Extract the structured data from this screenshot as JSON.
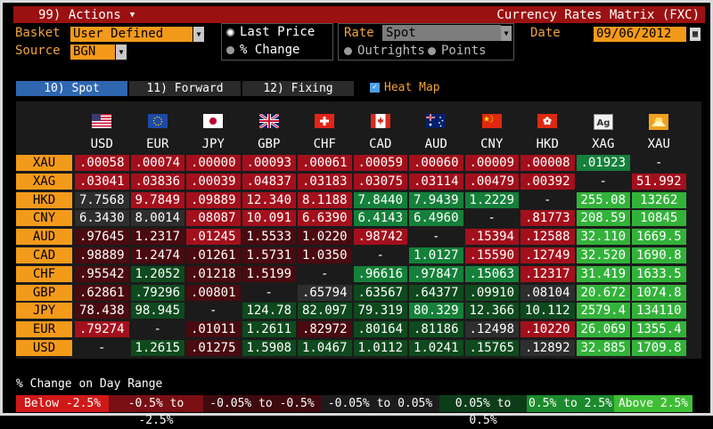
{
  "titlebar": {
    "actions_label": "99) Actions",
    "actions_arrow": "▼",
    "app_title": "Currency Rates Matrix (FXC)"
  },
  "controls": {
    "basket_label": "Basket",
    "basket_value": "User Defined",
    "source_label": "Source",
    "source_value": "BGN",
    "last_price_label": "Last Price",
    "pct_change_label": "% Change",
    "rate_label": "Rate",
    "rate_value": "Spot",
    "outrights_label": "Outrights",
    "points_label": "Points",
    "date_label": "Date",
    "date_value": "09/06/2012"
  },
  "tabs": [
    {
      "label": "10) Spot"
    },
    {
      "label": "11) Forward"
    },
    {
      "label": "12) Fixing"
    }
  ],
  "heat_map_label": "Heat Map",
  "columns": [
    "USD",
    "EUR",
    "JPY",
    "GBP",
    "CHF",
    "CAD",
    "AUD",
    "CNY",
    "HKD",
    "XAG",
    "XAU"
  ],
  "flags": [
    "us-flag",
    "eu-flag",
    "japan-flag",
    "uk-flag",
    "swiss-flag",
    "canada-flag",
    "australia-flag",
    "china-flag",
    "hong-kong-flag",
    "silver-icon",
    "gold-icon"
  ],
  "rows": [
    {
      "label": "XAU",
      "cells": [
        ".00058",
        ".00074",
        ".00000",
        ".00093",
        ".00061",
        ".00059",
        ".00060",
        ".00009",
        ".00008",
        ".01923",
        "-"
      ]
    },
    {
      "label": "XAG",
      "cells": [
        ".03041",
        ".03836",
        ".00039",
        ".04837",
        ".03183",
        ".03075",
        ".03114",
        ".00479",
        ".00392",
        "-",
        "51.992"
      ]
    },
    {
      "label": "HKD",
      "cells": [
        "7.7568",
        "9.7849",
        ".09889",
        "12.340",
        "8.1188",
        "7.8440",
        "7.9439",
        "1.2229",
        "-",
        "255.08",
        "13262"
      ]
    },
    {
      "label": "CNY",
      "cells": [
        "6.3430",
        "8.0014",
        ".08087",
        "10.091",
        "6.6390",
        "6.4143",
        "6.4960",
        "-",
        ".81773",
        "208.59",
        "10845"
      ]
    },
    {
      "label": "AUD",
      "cells": [
        ".97645",
        "1.2317",
        ".01245",
        "1.5533",
        "1.0220",
        ".98742",
        "-",
        ".15394",
        ".12588",
        "32.110",
        "1669.5"
      ]
    },
    {
      "label": "CAD",
      "cells": [
        ".98889",
        "1.2474",
        ".01261",
        "1.5731",
        "1.0350",
        "-",
        "1.0127",
        ".15590",
        ".12749",
        "32.520",
        "1690.8"
      ]
    },
    {
      "label": "CHF",
      "cells": [
        ".95542",
        "1.2052",
        ".01218",
        "1.5199",
        "-",
        ".96616",
        ".97847",
        ".15063",
        ".12317",
        "31.419",
        "1633.5"
      ]
    },
    {
      "label": "GBP",
      "cells": [
        ".62861",
        ".79296",
        ".00801",
        "-",
        ".65794",
        ".63567",
        ".64377",
        ".09910",
        ".08104",
        "20.672",
        "1074.8"
      ]
    },
    {
      "label": "JPY",
      "cells": [
        "78.438",
        "98.945",
        "-",
        "124.78",
        "82.097",
        "79.319",
        "80.329",
        "12.366",
        "10.112",
        "2579.4",
        "134110"
      ]
    },
    {
      "label": "EUR",
      "cells": [
        ".79274",
        "-",
        ".01011",
        "1.2611",
        ".82972",
        ".80164",
        ".81186",
        ".12498",
        ".10220",
        "26.069",
        "1355.4"
      ]
    },
    {
      "label": "USD",
      "cells": [
        "-",
        "1.2615",
        ".01275",
        "1.5908",
        "1.0467",
        "1.0112",
        "1.0241",
        ".15765",
        ".12892",
        "32.885",
        "1709.8"
      ]
    }
  ],
  "heat": [
    [
      "r2",
      "r2",
      "r2",
      "r2",
      "r2",
      "r2",
      "r2",
      "r2",
      "r2",
      "g2",
      "n"
    ],
    [
      "r2",
      "r2",
      "r2",
      "r2",
      "r2",
      "r2",
      "r2",
      "r2",
      "r2",
      "n",
      "r2"
    ],
    [
      "d",
      "r2",
      "r2",
      "r2",
      "r2",
      "g2",
      "g2",
      "g2",
      "n",
      "g3",
      "g3"
    ],
    [
      "d",
      "d",
      "r2",
      "r2",
      "r2",
      "g2",
      "g2",
      "n",
      "r2",
      "g3",
      "g3"
    ],
    [
      "r1",
      "r1",
      "r2",
      "r1",
      "r1",
      "r2",
      "n",
      "r2",
      "r2",
      "g3",
      "g3"
    ],
    [
      "r1",
      "r1",
      "r1",
      "r1",
      "r1",
      "n",
      "g2",
      "r2",
      "r2",
      "g3",
      "g3"
    ],
    [
      "r1",
      "g1",
      "r1",
      "r1",
      "n",
      "g2",
      "g2",
      "g2",
      "r2",
      "g3",
      "g3"
    ],
    [
      "r1",
      "g1",
      "r1",
      "n",
      "d",
      "g1",
      "g1",
      "g1",
      "d",
      "g3",
      "g3"
    ],
    [
      "r1",
      "g1",
      "n",
      "g1",
      "g1",
      "g1",
      "g2",
      "g1",
      "g1",
      "g3",
      "g3"
    ],
    [
      "r2",
      "n",
      "r1",
      "g1",
      "r1",
      "g1",
      "g1",
      "d",
      "r2",
      "g3",
      "g3"
    ],
    [
      "n",
      "g1",
      "r1",
      "g1",
      "g1",
      "g1",
      "g1",
      "g1",
      "d",
      "g3",
      "g3"
    ]
  ],
  "colors": {
    "r2": "#a3101c",
    "r1": "#4a0a10",
    "d": "#2e2e2e",
    "n": "#1b1b1b",
    "g1": "#0f4a1e",
    "g2": "#15803a",
    "g3": "#33b23a",
    "accent": "#f49a1a"
  },
  "legend_title": "% Change on Day Range",
  "legend": [
    {
      "label": "Below -2.5%",
      "color": "#d01818"
    },
    {
      "label": "-0.5% to -2.5%",
      "color": "#7a0f14"
    },
    {
      "label": "-0.05% to -0.5%",
      "color": "#3e0a0d"
    },
    {
      "label": "-0.05% to 0.05%",
      "color": "#1c1c1c"
    },
    {
      "label": "0.05% to 0.5%",
      "color": "#0d3d18"
    },
    {
      "label": "0.5% to 2.5%",
      "color": "#1b8a2c"
    },
    {
      "label": "Above 2.5%",
      "color": "#3fbe35"
    }
  ]
}
